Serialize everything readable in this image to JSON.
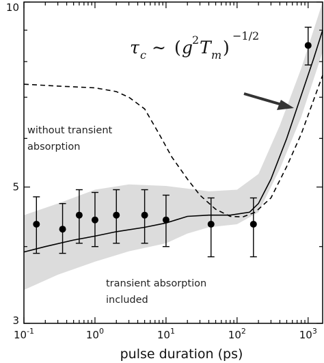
{
  "chart_data": {
    "type": "line",
    "xscale": "log",
    "yscale": "log",
    "xlim": [
      0.1,
      1600
    ],
    "ylim": [
      3,
      10
    ],
    "xlabel": "pulse duration (ps)",
    "ylabel": "",
    "x_ticks": [
      0.1,
      1,
      10,
      100,
      1000
    ],
    "x_tick_labels": [
      "10^-1",
      "10^0",
      "10^1",
      "10^2",
      "10^3"
    ],
    "y_ticks": [
      3,
      5,
      10
    ],
    "y_tick_labels": [
      "3",
      "5",
      "10"
    ],
    "grid": false,
    "formula": {
      "tau": "τ",
      "c": "c",
      "sim": "∼",
      "g": "g",
      "exp2": "2",
      "T": "T",
      "m": "m",
      "exp": "−1/2"
    },
    "annotations": {
      "without_line1": "without transient",
      "without_line2": "absorption",
      "with_line1": "transient absorption",
      "with_line2": "included"
    },
    "band": {
      "x": [
        0.1,
        0.3,
        1,
        3,
        10,
        20,
        40,
        100,
        200,
        400,
        800,
        1600
      ],
      "upper": [
        4.5,
        4.7,
        4.95,
        5.05,
        5.02,
        4.97,
        4.92,
        4.95,
        5.25,
        6.3,
        7.8,
        10.0
      ],
      "lower": [
        3.4,
        3.6,
        3.78,
        3.93,
        4.05,
        4.2,
        4.3,
        4.35,
        4.55,
        5.35,
        6.5,
        8.3
      ]
    },
    "series": [
      {
        "style": "solid",
        "x": [
          0.1,
          0.2,
          0.5,
          1,
          2,
          5,
          10,
          20,
          40,
          80,
          150,
          200,
          300,
          500,
          800,
          1200,
          1600
        ],
        "y": [
          3.92,
          4.0,
          4.1,
          4.16,
          4.23,
          4.3,
          4.37,
          4.48,
          4.5,
          4.5,
          4.55,
          4.7,
          5.15,
          6.0,
          7.05,
          8.1,
          9.0
        ]
      },
      {
        "style": "dashed",
        "x": [
          0.1,
          0.3,
          1,
          2,
          3,
          5,
          8,
          12,
          20,
          30,
          50,
          80,
          120,
          180,
          300,
          500,
          800,
          1600
        ],
        "y": [
          7.35,
          7.3,
          7.25,
          7.15,
          7.0,
          6.7,
          6.1,
          5.6,
          5.15,
          4.85,
          4.6,
          4.48,
          4.47,
          4.55,
          4.8,
          5.4,
          6.1,
          7.6
        ]
      }
    ],
    "points": {
      "x": [
        0.15,
        0.35,
        0.6,
        1,
        2,
        5,
        10,
        43,
        170,
        1000
      ],
      "y": [
        4.35,
        4.27,
        4.5,
        4.42,
        4.5,
        4.5,
        4.42,
        4.35,
        4.35,
        8.5
      ],
      "err_low": [
        3.9,
        3.9,
        4.05,
        4.0,
        4.05,
        4.05,
        4.0,
        3.85,
        3.85,
        7.9
      ],
      "err_high": [
        4.82,
        4.7,
        4.95,
        4.9,
        4.95,
        4.95,
        4.85,
        4.8,
        4.8,
        9.1
      ]
    }
  }
}
